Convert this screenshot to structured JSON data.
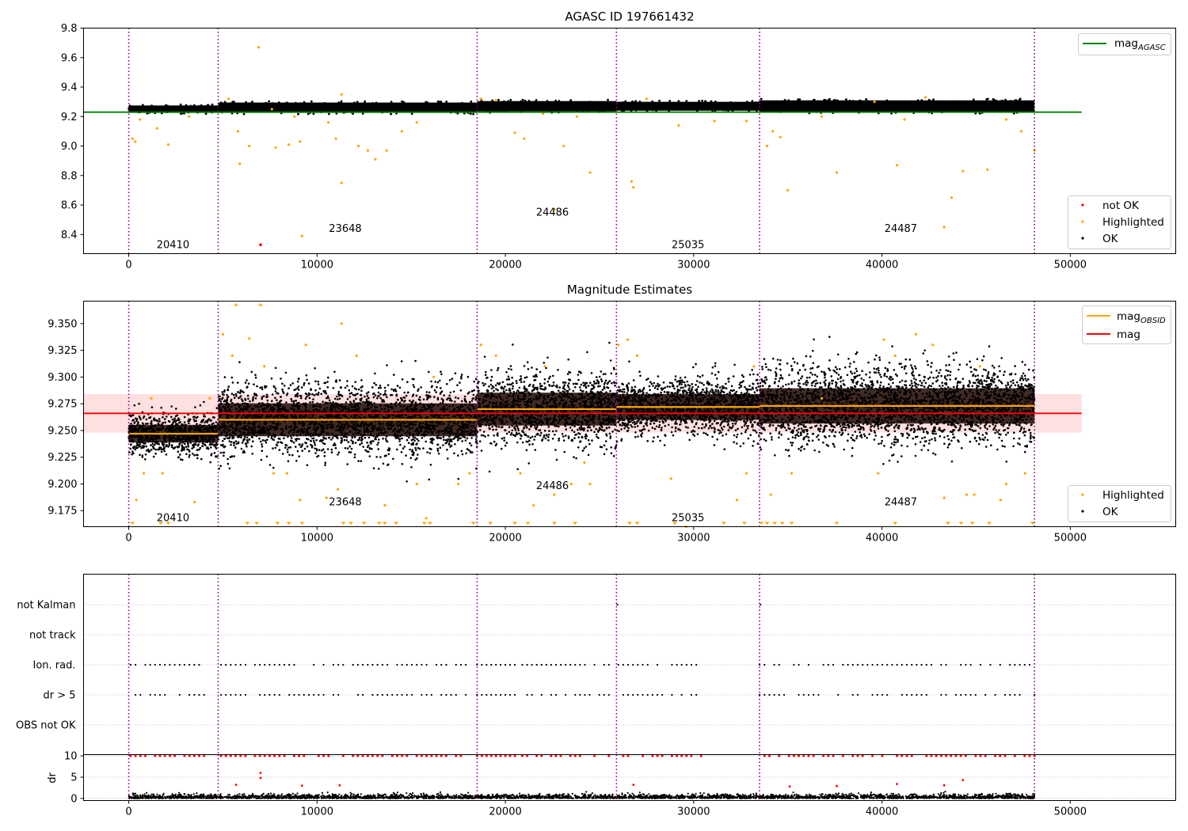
{
  "chart_data": [
    {
      "type": "scatter",
      "title": "AGASC ID 197661432",
      "xlim": [
        -2400,
        55600
      ],
      "ylim": [
        8.27,
        9.8
      ],
      "xticks": [
        0,
        10000,
        20000,
        30000,
        40000,
        50000
      ],
      "yticks": [
        8.4,
        8.6,
        8.8,
        9.0,
        9.2,
        9.4,
        9.6,
        9.8
      ],
      "ytick_labels": [
        "8.4",
        "8.6",
        "8.8",
        "9.0",
        "9.2",
        "9.4",
        "9.6",
        "9.8"
      ],
      "legends": {
        "lines": [
          {
            "label": "mag",
            "sub": "AGASC",
            "color": "#008000"
          }
        ],
        "points": [
          {
            "label": "not OK",
            "color": "#ff0000"
          },
          {
            "label": "Highlighted",
            "color": "#ffa500"
          },
          {
            "label": "OK",
            "color": "#000000"
          }
        ]
      },
      "mag_agasc": 9.23,
      "mag_agasc_x_range": [
        -2400,
        50600
      ],
      "obs_boundaries": [
        0,
        4750,
        18500,
        25900,
        33500,
        48100
      ],
      "obsids": [
        {
          "label": "20410",
          "x": 2350,
          "y": 8.33
        },
        {
          "label": "23648",
          "x": 11500,
          "y": 8.44
        },
        {
          "label": "24486",
          "x": 22500,
          "y": 8.55
        },
        {
          "label": "25035",
          "x": 29700,
          "y": 8.33
        },
        {
          "label": "24487",
          "x": 41000,
          "y": 8.44
        }
      ],
      "ok_bands": [
        {
          "x0": 0,
          "x1": 4750,
          "center": 9.25,
          "half_width": 0.025
        },
        {
          "x0": 4750,
          "x1": 18500,
          "center": 9.26,
          "half_width": 0.035
        },
        {
          "x0": 18500,
          "x1": 25900,
          "center": 9.27,
          "half_width": 0.035
        },
        {
          "x0": 25900,
          "x1": 33500,
          "center": 9.27,
          "half_width": 0.03
        },
        {
          "x0": 33500,
          "x1": 48100,
          "center": 9.27,
          "half_width": 0.04
        }
      ],
      "highlighted": [
        [
          200,
          9.05
        ],
        [
          350,
          9.03
        ],
        [
          600,
          9.18
        ],
        [
          1500,
          9.12
        ],
        [
          2100,
          9.01
        ],
        [
          3200,
          9.2
        ],
        [
          5300,
          9.32
        ],
        [
          5800,
          9.1
        ],
        [
          5900,
          8.88
        ],
        [
          6400,
          9.0
        ],
        [
          6900,
          9.67
        ],
        [
          7600,
          9.25
        ],
        [
          7800,
          8.99
        ],
        [
          8500,
          9.01
        ],
        [
          8800,
          9.2
        ],
        [
          9100,
          9.03
        ],
        [
          9200,
          8.39
        ],
        [
          10600,
          9.16
        ],
        [
          11000,
          9.05
        ],
        [
          11300,
          8.75
        ],
        [
          11300,
          9.35
        ],
        [
          12200,
          9.0
        ],
        [
          12700,
          8.97
        ],
        [
          13100,
          8.91
        ],
        [
          13700,
          8.97
        ],
        [
          14500,
          9.1
        ],
        [
          15300,
          9.16
        ],
        [
          18700,
          9.32
        ],
        [
          19500,
          9.31
        ],
        [
          20500,
          9.09
        ],
        [
          21000,
          9.05
        ],
        [
          22000,
          9.22
        ],
        [
          22600,
          8.57
        ],
        [
          23100,
          9.0
        ],
        [
          23800,
          9.2
        ],
        [
          24500,
          8.82
        ],
        [
          26700,
          8.76
        ],
        [
          26800,
          8.72
        ],
        [
          27500,
          9.32
        ],
        [
          29200,
          9.14
        ],
        [
          31100,
          9.17
        ],
        [
          32800,
          9.17
        ],
        [
          33900,
          9.0
        ],
        [
          34200,
          9.1
        ],
        [
          34600,
          9.06
        ],
        [
          35000,
          8.7
        ],
        [
          36800,
          9.2
        ],
        [
          37600,
          8.82
        ],
        [
          39600,
          9.3
        ],
        [
          40800,
          8.87
        ],
        [
          41200,
          9.18
        ],
        [
          42300,
          9.33
        ],
        [
          43300,
          8.45
        ],
        [
          43700,
          8.65
        ],
        [
          44300,
          8.83
        ],
        [
          45600,
          8.84
        ],
        [
          46600,
          9.18
        ],
        [
          47400,
          9.1
        ],
        [
          48100,
          8.97
        ]
      ],
      "not_ok": [
        [
          7000,
          8.33
        ]
      ]
    },
    {
      "type": "scatter",
      "title": "Magnitude Estimates",
      "xlim": [
        -2400,
        55600
      ],
      "ylim": [
        9.16,
        9.371
      ],
      "xticks": [
        0,
        10000,
        20000,
        30000,
        40000,
        50000
      ],
      "yticks": [
        9.175,
        9.2,
        9.225,
        9.25,
        9.275,
        9.3,
        9.325,
        9.35
      ],
      "ytick_labels": [
        "9.175",
        "9.200",
        "9.225",
        "9.250",
        "9.275",
        "9.300",
        "9.325",
        "9.350"
      ],
      "legends": {
        "lines": [
          {
            "label": "mag",
            "sub": "OBSID",
            "color": "#ffa500"
          },
          {
            "label": "mag",
            "sub": "",
            "color": "#ff0000"
          }
        ],
        "points": [
          {
            "label": "Highlighted",
            "color": "#ffa500"
          },
          {
            "label": "OK",
            "color": "#000000"
          }
        ]
      },
      "mag": 9.266,
      "mag_band": [
        9.248,
        9.284
      ],
      "mag_x_range": [
        -2400,
        50600
      ],
      "obs_boundaries": [
        0,
        4750,
        18500,
        25900,
        33500,
        48100
      ],
      "obs_segments": [
        {
          "x0": 0,
          "x1": 4750,
          "mag_obsid": 9.247,
          "spread": 0.015
        },
        {
          "x0": 4750,
          "x1": 18500,
          "mag_obsid": 9.26,
          "spread": 0.028
        },
        {
          "x0": 18500,
          "x1": 25900,
          "mag_obsid": 9.27,
          "spread": 0.028
        },
        {
          "x0": 25900,
          "x1": 33500,
          "mag_obsid": 9.272,
          "spread": 0.022
        },
        {
          "x0": 33500,
          "x1": 48100,
          "mag_obsid": 9.273,
          "spread": 0.03
        }
      ],
      "obsids": [
        {
          "label": "20410",
          "x": 2350,
          "y": 9.168
        },
        {
          "label": "23648",
          "x": 11500,
          "y": 9.183
        },
        {
          "label": "24486",
          "x": 22500,
          "y": 9.198
        },
        {
          "label": "25035",
          "x": 29700,
          "y": 9.168
        },
        {
          "label": "24487",
          "x": 41000,
          "y": 9.183
        }
      ],
      "highlighted": [
        [
          400,
          9.185
        ],
        [
          800,
          9.21
        ],
        [
          1200,
          9.28
        ],
        [
          1800,
          9.21
        ],
        [
          3500,
          9.183
        ],
        [
          4300,
          9.28
        ],
        [
          5000,
          9.34
        ],
        [
          5500,
          9.32
        ],
        [
          6400,
          9.336
        ],
        [
          7200,
          9.31
        ],
        [
          7700,
          9.21
        ],
        [
          8400,
          9.21
        ],
        [
          9100,
          9.185
        ],
        [
          9400,
          9.33
        ],
        [
          10500,
          9.187
        ],
        [
          11100,
          9.195
        ],
        [
          11300,
          9.35
        ],
        [
          12100,
          9.32
        ],
        [
          13600,
          9.18
        ],
        [
          15300,
          9.2
        ],
        [
          15800,
          9.168
        ],
        [
          16200,
          9.3
        ],
        [
          17500,
          9.2
        ],
        [
          18100,
          9.21
        ],
        [
          18700,
          9.33
        ],
        [
          19500,
          9.32
        ],
        [
          20800,
          9.21
        ],
        [
          21500,
          9.18
        ],
        [
          22100,
          9.31
        ],
        [
          22600,
          9.19
        ],
        [
          23500,
          9.2
        ],
        [
          24200,
          9.22
        ],
        [
          24500,
          9.2
        ],
        [
          26000,
          9.33
        ],
        [
          26500,
          9.335
        ],
        [
          27000,
          9.32
        ],
        [
          28800,
          9.205
        ],
        [
          29600,
          9.16
        ],
        [
          32300,
          9.185
        ],
        [
          32800,
          9.21
        ],
        [
          33200,
          9.31
        ],
        [
          34100,
          9.19
        ],
        [
          35200,
          9.21
        ],
        [
          36800,
          9.28
        ],
        [
          39800,
          9.21
        ],
        [
          40100,
          9.335
        ],
        [
          40700,
          9.32
        ],
        [
          41800,
          9.34
        ],
        [
          42700,
          9.33
        ],
        [
          43300,
          9.187
        ],
        [
          44500,
          9.19
        ],
        [
          44900,
          9.19
        ],
        [
          45200,
          9.31
        ],
        [
          46300,
          9.185
        ],
        [
          46600,
          9.2
        ],
        [
          47600,
          9.21
        ]
      ],
      "highlighted_clipped_x": [
        200,
        1700,
        2100,
        6300,
        6800,
        7900,
        8500,
        9200,
        11400,
        11800,
        12500,
        13300,
        13600,
        14200,
        15700,
        16000,
        18300,
        19200,
        20500,
        21200,
        22600,
        23700,
        26600,
        27000,
        29000,
        31600,
        32700,
        33600,
        33900,
        34300,
        34700,
        35200,
        37600,
        40700,
        43500,
        44200,
        44800,
        45700,
        48000
      ],
      "highlighted_top_clipped_x": [
        5700,
        7000
      ]
    },
    {
      "type": "scatter",
      "title": "",
      "xlim": [
        -2400,
        55600
      ],
      "xticks": [
        0,
        10000,
        20000,
        30000,
        40000,
        50000
      ],
      "category_labels": [
        "not Kalman",
        "not track",
        "Ion. rad.",
        "dr > 5",
        "OBS not OK"
      ],
      "flag_presence": {
        "not Kalman": [
          [
            25950,
            25950
          ],
          [
            33550,
            33550
          ]
        ],
        "not track": [],
        "Ion. rad.": [
          [
            100,
            4000
          ],
          [
            4900,
            6200
          ],
          [
            6700,
            17900
          ],
          [
            18500,
            20500
          ],
          [
            20900,
            25500
          ],
          [
            26000,
            30400
          ],
          [
            33500,
            48100
          ]
        ],
        "dr > 5": [
          [
            100,
            4000
          ],
          [
            4900,
            6200
          ],
          [
            6700,
            17900
          ],
          [
            18500,
            20500
          ],
          [
            20900,
            25500
          ],
          [
            26000,
            30400
          ],
          [
            33500,
            48100
          ]
        ],
        "OBS not OK": []
      },
      "obs_boundaries": [
        0,
        4750,
        18500,
        25900,
        33500,
        48100
      ]
    },
    {
      "type": "scatter",
      "title": "",
      "ylabel": "dr",
      "xlim": [
        -2400,
        55600
      ],
      "ylim": [
        -0.5,
        10.3
      ],
      "xticks": [
        0,
        10000,
        20000,
        30000,
        40000,
        50000
      ],
      "yticks": [
        0,
        5,
        10
      ],
      "dr_clip": 10,
      "dr_typical": [
        0,
        1.2
      ],
      "dr_outliers": [
        [
          5700,
          3.2
        ],
        [
          7000,
          6.0
        ],
        [
          7000,
          4.8
        ],
        [
          9200,
          3.0
        ],
        [
          11200,
          3.1
        ],
        [
          26800,
          3.2
        ],
        [
          35100,
          2.8
        ],
        [
          37600,
          2.9
        ],
        [
          40800,
          3.4
        ],
        [
          43300,
          3.1
        ],
        [
          44300,
          4.3
        ]
      ],
      "obs_boundaries": [
        0,
        4750,
        18500,
        25900,
        33500,
        48100
      ]
    }
  ]
}
